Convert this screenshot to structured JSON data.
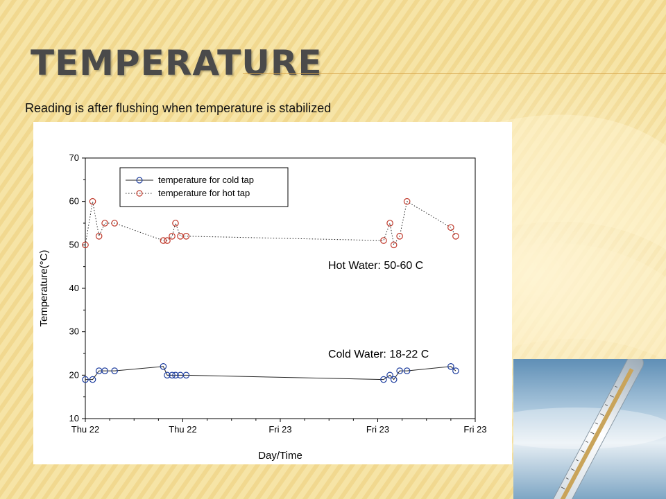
{
  "slide": {
    "title": "TEMPERATURE",
    "subtitle": "Reading is after flushing when temperature is stabilized",
    "colors": {
      "background": "#f6e4a6",
      "accent": "#d7a54a",
      "title": "#4a4a4a"
    }
  },
  "chart_data": {
    "type": "line",
    "xlabel": "Day/Time",
    "ylabel": "Temperature(°C)",
    "ylim": [
      10,
      70
    ],
    "yticks": [
      10,
      20,
      30,
      40,
      50,
      60,
      70
    ],
    "xlim": [
      0,
      8
    ],
    "x_ticks": [
      {
        "x": 0,
        "label": "Thu 22"
      },
      {
        "x": 2,
        "label": "Thu 22"
      },
      {
        "x": 4,
        "label": "Fri 23"
      },
      {
        "x": 6,
        "label": "Fri 23"
      },
      {
        "x": 8,
        "label": "Fri 23"
      }
    ],
    "grid": false,
    "legend": "top-left",
    "series": [
      {
        "name": "temperature for cold tap",
        "color": "#1f3f9f",
        "line_style": "solid",
        "marker": "circle",
        "x": [
          0.0,
          0.15,
          0.28,
          0.4,
          0.6,
          1.6,
          1.68,
          1.78,
          1.85,
          1.95,
          2.07,
          6.12,
          6.25,
          6.33,
          6.45,
          6.6,
          7.5,
          7.6
        ],
        "y": [
          19,
          19,
          21,
          21,
          21,
          22,
          20,
          20,
          20,
          20,
          20,
          19,
          20,
          19,
          21,
          21,
          22,
          21
        ]
      },
      {
        "name": "temperature for hot tap",
        "color": "#c0392b",
        "line_style": "dotted",
        "marker": "circle",
        "x": [
          0.0,
          0.15,
          0.28,
          0.4,
          0.6,
          1.6,
          1.68,
          1.78,
          1.85,
          1.95,
          2.07,
          6.12,
          6.25,
          6.33,
          6.45,
          6.6,
          7.5,
          7.6
        ],
        "y": [
          50,
          60,
          52,
          55,
          55,
          51,
          51,
          52,
          55,
          52,
          52,
          51,
          55,
          50,
          52,
          60,
          54,
          52
        ]
      }
    ],
    "annotations": [
      {
        "text": "Hot Water: 50-60 C"
      },
      {
        "text": "Cold Water: 18-22 C"
      }
    ]
  }
}
